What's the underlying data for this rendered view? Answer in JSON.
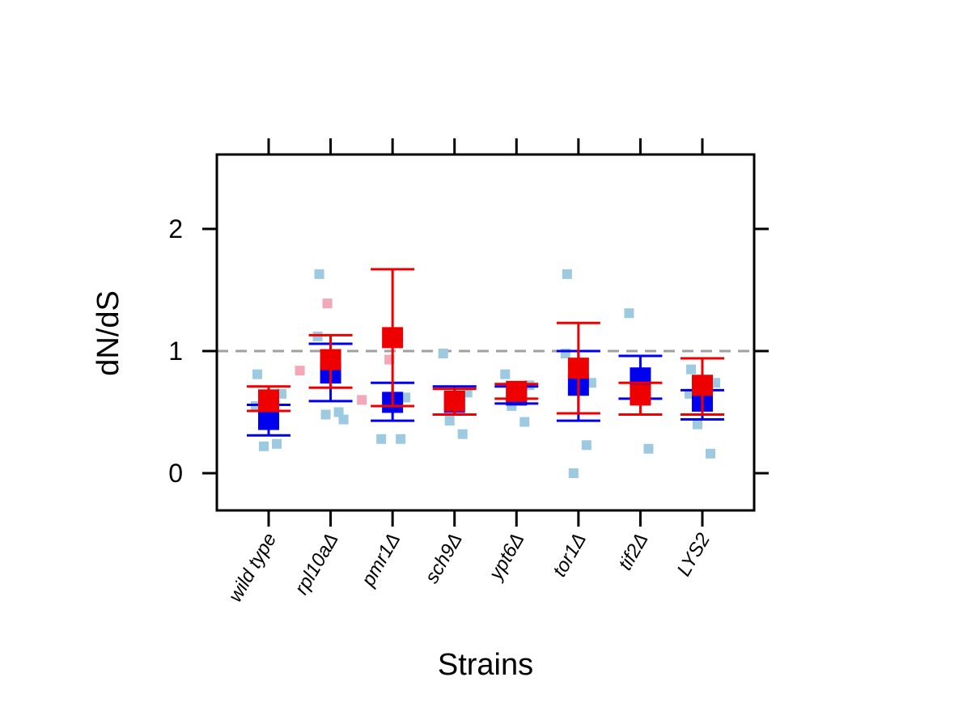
{
  "chart_data": {
    "type": "scatter",
    "xlabel": "Strains",
    "ylabel": "dN/dS",
    "ylim": [
      -0.3,
      2.6
    ],
    "yticks": [
      0,
      1,
      2
    ],
    "reference_line": 1,
    "grid": false,
    "categories": [
      "wild type",
      "rpl10aΔ",
      "pmr1Δ",
      "sch9Δ",
      "ypt6Δ",
      "tor1Δ",
      "tif2Δ",
      "LYS2"
    ],
    "colors": {
      "blue_mean": "#0000ee",
      "red_mean": "#ee0000",
      "blue_points": "#9ecae1",
      "red_points": "#f4a7b9",
      "reference": "#a0a0a0"
    },
    "series": [
      {
        "name": "blue",
        "mean": [
          0.44,
          0.82,
          0.58,
          0.58,
          0.64,
          0.72,
          0.78,
          0.59
        ],
        "lower": [
          0.31,
          0.59,
          0.43,
          0.48,
          0.57,
          0.43,
          0.61,
          0.44
        ],
        "upper": [
          0.56,
          1.06,
          0.74,
          0.71,
          0.71,
          1.0,
          0.96,
          0.68
        ],
        "points": [
          [
            0.81,
            0.24,
            0.22,
            0.65,
            0.55
          ],
          [
            1.63,
            0.5,
            0.48,
            0.44,
            1.12
          ],
          [
            0.28,
            0.28,
            1.15,
            0.62
          ],
          [
            0.98,
            0.32,
            0.43,
            0.66
          ],
          [
            0.81,
            0.42,
            0.55,
            0.72
          ],
          [
            1.63,
            0.23,
            0.0,
            0.74,
            0.98
          ],
          [
            1.31,
            0.2,
            0.75
          ],
          [
            0.85,
            0.16,
            0.4,
            0.74,
            0.65
          ]
        ]
      },
      {
        "name": "red",
        "mean": [
          0.6,
          0.93,
          1.11,
          0.59,
          0.67,
          0.86,
          0.64,
          0.72
        ],
        "lower": [
          0.51,
          0.7,
          0.55,
          0.48,
          0.61,
          0.49,
          0.48,
          0.48
        ],
        "upper": [
          0.71,
          1.13,
          1.67,
          0.69,
          0.73,
          1.23,
          0.74,
          0.94
        ],
        "points": [
          [],
          [
            0.84,
            1.39
          ],
          [
            0.6,
            0.93
          ],
          [],
          [],
          [],
          [],
          []
        ]
      }
    ]
  }
}
